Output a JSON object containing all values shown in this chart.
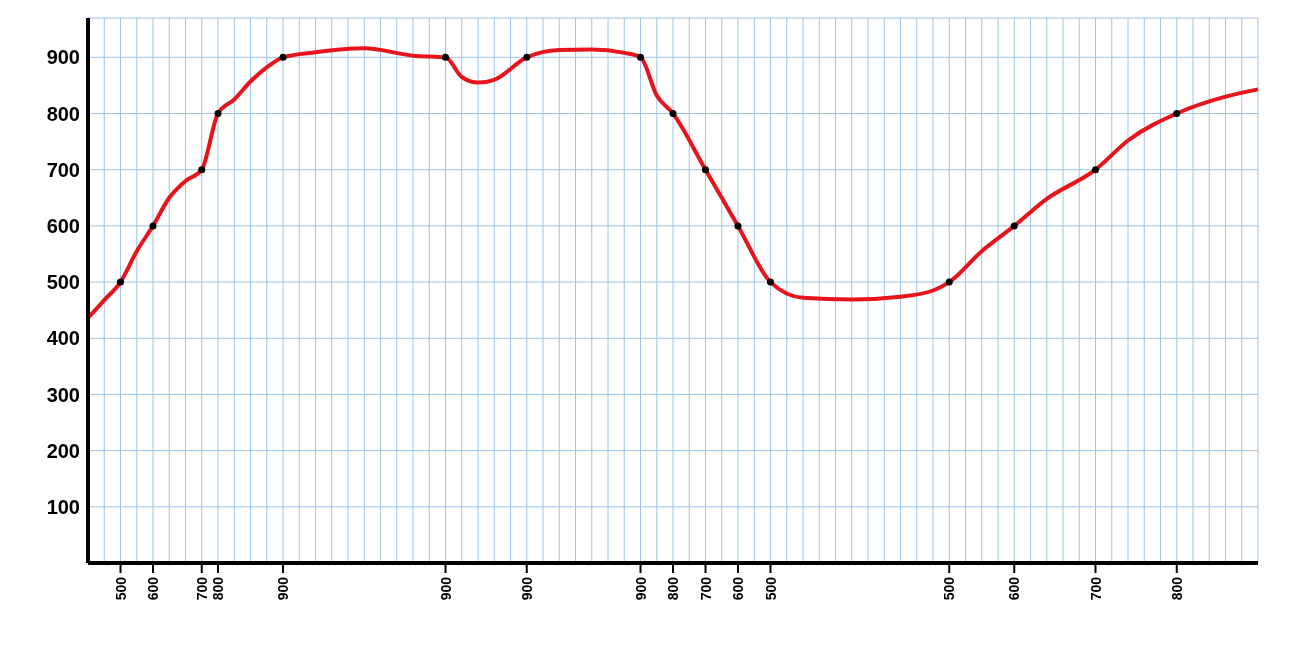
{
  "chart_data": {
    "type": "line",
    "ylim": [
      0,
      970
    ],
    "yticks": [
      100,
      200,
      300,
      400,
      500,
      600,
      700,
      800,
      900
    ],
    "categories": [
      null,
      null,
      "500",
      null,
      "600",
      null,
      null,
      "700",
      "800",
      null,
      null,
      null,
      "900",
      null,
      null,
      null,
      null,
      null,
      null,
      null,
      null,
      null,
      "900",
      null,
      null,
      null,
      null,
      "900",
      null,
      null,
      null,
      null,
      null,
      null,
      "900",
      null,
      "800",
      null,
      "700",
      null,
      "600",
      null,
      "500",
      null,
      null,
      null,
      null,
      null,
      null,
      null,
      null,
      null,
      null,
      "500",
      null,
      null,
      null,
      "600",
      null,
      null,
      null,
      null,
      "700",
      null,
      null,
      null,
      null,
      "800",
      null,
      null,
      null,
      null,
      null
    ],
    "grid": true,
    "legend": false,
    "series": [
      {
        "color": "#e8141c",
        "marker": "none",
        "values": [
          436,
          468,
          500,
          555,
          600,
          650,
          680,
          700,
          800,
          825,
          857,
          882,
          900,
          null,
          909,
          null,
          null,
          916,
          null,
          null,
          903,
          null,
          900,
          865,
          855,
          860,
          null,
          900,
          null,
          913,
          null,
          914,
          null,
          908,
          900,
          832,
          800,
          null,
          700,
          null,
          600,
          null,
          500,
          null,
          472,
          null,
          null,
          469,
          null,
          null,
          474,
          null,
          485,
          500,
          null,
          555,
          null,
          600,
          null,
          648,
          null,
          null,
          700,
          null,
          752,
          null,
          null,
          800,
          null,
          null,
          830,
          null,
          843
        ]
      },
      {
        "type": "scatter",
        "color": "#000000",
        "marker": "circle",
        "values": [
          null,
          null,
          500,
          null,
          600,
          null,
          null,
          700,
          800,
          null,
          null,
          null,
          900,
          null,
          null,
          null,
          null,
          null,
          null,
          null,
          null,
          null,
          900,
          null,
          null,
          null,
          null,
          900,
          null,
          null,
          null,
          null,
          null,
          null,
          900,
          null,
          800,
          null,
          700,
          null,
          600,
          null,
          500,
          null,
          null,
          null,
          null,
          null,
          null,
          null,
          null,
          null,
          null,
          500,
          null,
          null,
          null,
          600,
          null,
          null,
          null,
          null,
          700,
          null,
          null,
          null,
          null,
          800,
          null,
          null,
          null,
          null,
          null
        ]
      }
    ]
  }
}
